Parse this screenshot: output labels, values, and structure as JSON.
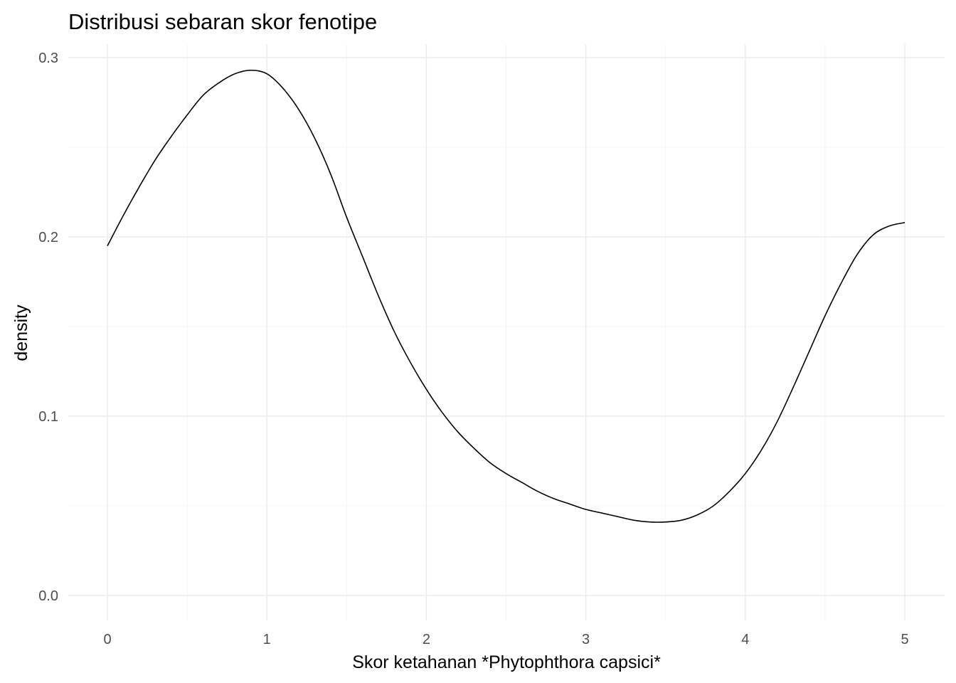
{
  "chart_data": {
    "type": "line",
    "title": "Distribusi sebaran skor fenotipe",
    "xlabel": "Skor ketahanan *Phytophthora capsici*",
    "ylabel": "density",
    "xlim": [
      0,
      5
    ],
    "ylim": [
      0,
      0.3
    ],
    "x_ticks": [
      0,
      1,
      2,
      3,
      4,
      5
    ],
    "x_tick_labels": [
      "0",
      "1",
      "2",
      "3",
      "4",
      "5"
    ],
    "y_ticks": [
      0,
      0.1,
      0.2,
      0.3
    ],
    "y_tick_labels": [
      "0.0",
      "0.1",
      "0.2",
      "0.3"
    ],
    "grid": true,
    "legend": "none",
    "line_color": "#000000",
    "series": [
      {
        "x": [
          0,
          0.1,
          0.2,
          0.3,
          0.4,
          0.5,
          0.6,
          0.7,
          0.8,
          0.9,
          1.0,
          1.1,
          1.2,
          1.3,
          1.4,
          1.5,
          1.6,
          1.7,
          1.8,
          1.9,
          2.0,
          2.1,
          2.2,
          2.3,
          2.4,
          2.5,
          2.6,
          2.7,
          2.8,
          2.9,
          3.0,
          3.1,
          3.2,
          3.3,
          3.4,
          3.5,
          3.6,
          3.7,
          3.8,
          3.9,
          4.0,
          4.1,
          4.2,
          4.3,
          4.4,
          4.5,
          4.6,
          4.7,
          4.8,
          4.9,
          5.0
        ],
        "values": [
          0.195,
          0.212,
          0.228,
          0.243,
          0.256,
          0.268,
          0.279,
          0.286,
          0.291,
          0.293,
          0.291,
          0.283,
          0.271,
          0.255,
          0.235,
          0.211,
          0.189,
          0.167,
          0.147,
          0.13,
          0.115,
          0.102,
          0.091,
          0.082,
          0.074,
          0.068,
          0.063,
          0.058,
          0.054,
          0.051,
          0.048,
          0.046,
          0.044,
          0.042,
          0.041,
          0.041,
          0.042,
          0.045,
          0.05,
          0.058,
          0.068,
          0.081,
          0.097,
          0.116,
          0.136,
          0.156,
          0.174,
          0.19,
          0.201,
          0.206,
          0.208
        ]
      }
    ]
  }
}
